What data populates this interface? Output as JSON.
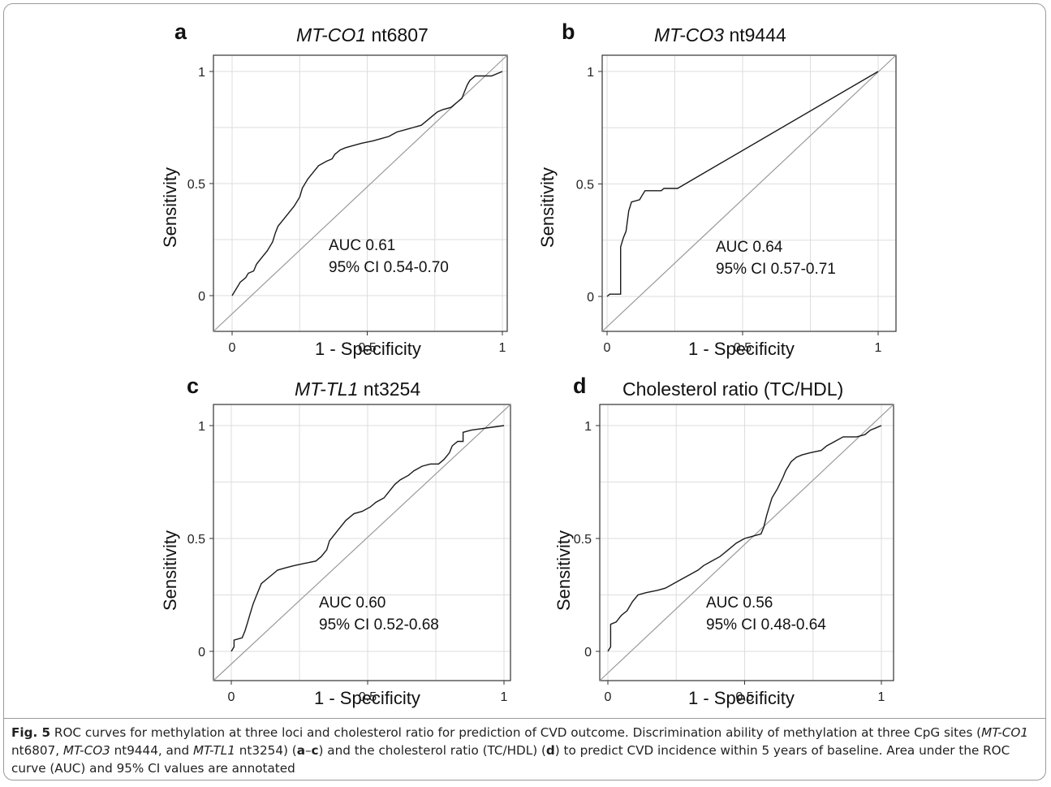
{
  "figure": {
    "caption_label": "Fig. 5",
    "caption_text": "ROC curves for methylation at three loci and cholesterol ratio for prediction of CVD outcome. Discrimination ability of methylation at three CpG sites (MT-CO1 nt6807, MT-CO3 nt9444, and MT-TL1 nt3254) (a–c) and the cholesterol ratio (TC/HDL) (d) to predict CVD incidence within 5 years of baseline. Area under the ROC curve (AUC) and 95% CI values are annotated"
  },
  "chart_data": [
    {
      "type": "line",
      "panel_letter": "a",
      "title_gene": "MT-CO1",
      "title_rest": " nt6807",
      "xlabel": "1 - Specificity",
      "ylabel": "Sensitivity",
      "xlim": [
        0,
        1
      ],
      "ylim": [
        0,
        1
      ],
      "x_ticks": [
        "0",
        "0.5",
        "1"
      ],
      "y_ticks": [
        "0",
        "0.5",
        "1"
      ],
      "grid": true,
      "annotation_auc": "AUC 0.61",
      "annotation_ci": "95% CI 0.54-0.70",
      "roc": [
        [
          0,
          0
        ],
        [
          0.01,
          0.02
        ],
        [
          0.02,
          0.04
        ],
        [
          0.03,
          0.06
        ],
        [
          0.05,
          0.08
        ],
        [
          0.06,
          0.1
        ],
        [
          0.08,
          0.11
        ],
        [
          0.09,
          0.14
        ],
        [
          0.11,
          0.17
        ],
        [
          0.13,
          0.2
        ],
        [
          0.15,
          0.24
        ],
        [
          0.16,
          0.28
        ],
        [
          0.17,
          0.31
        ],
        [
          0.19,
          0.34
        ],
        [
          0.21,
          0.37
        ],
        [
          0.23,
          0.4
        ],
        [
          0.25,
          0.44
        ],
        [
          0.26,
          0.48
        ],
        [
          0.28,
          0.52
        ],
        [
          0.3,
          0.55
        ],
        [
          0.32,
          0.58
        ],
        [
          0.35,
          0.6
        ],
        [
          0.37,
          0.61
        ],
        [
          0.38,
          0.63
        ],
        [
          0.4,
          0.65
        ],
        [
          0.42,
          0.66
        ],
        [
          0.45,
          0.67
        ],
        [
          0.48,
          0.68
        ],
        [
          0.52,
          0.69
        ],
        [
          0.55,
          0.7
        ],
        [
          0.58,
          0.71
        ],
        [
          0.61,
          0.73
        ],
        [
          0.64,
          0.74
        ],
        [
          0.67,
          0.75
        ],
        [
          0.7,
          0.76
        ],
        [
          0.72,
          0.78
        ],
        [
          0.74,
          0.8
        ],
        [
          0.76,
          0.82
        ],
        [
          0.78,
          0.83
        ],
        [
          0.81,
          0.84
        ],
        [
          0.83,
          0.86
        ],
        [
          0.85,
          0.88
        ],
        [
          0.86,
          0.91
        ],
        [
          0.87,
          0.94
        ],
        [
          0.88,
          0.96
        ],
        [
          0.9,
          0.98
        ],
        [
          0.93,
          0.98
        ],
        [
          0.96,
          0.98
        ],
        [
          1,
          1
        ]
      ]
    },
    {
      "type": "line",
      "panel_letter": "b",
      "title_gene": "MT-CO3",
      "title_rest": " nt9444",
      "xlabel": "1 - Specificity",
      "ylabel": "Sensitivity",
      "xlim": [
        0,
        1
      ],
      "ylim": [
        0,
        1
      ],
      "x_ticks": [
        "0",
        "0.5",
        "1"
      ],
      "y_ticks": [
        "0",
        "0.5",
        "1"
      ],
      "grid": true,
      "annotation_auc": "AUC 0.64",
      "annotation_ci": "95% CI 0.57-0.71",
      "roc": [
        [
          0,
          0
        ],
        [
          0.01,
          0.01
        ],
        [
          0.05,
          0.01
        ],
        [
          0.05,
          0.22
        ],
        [
          0.06,
          0.26
        ],
        [
          0.07,
          0.29
        ],
        [
          0.08,
          0.38
        ],
        [
          0.09,
          0.42
        ],
        [
          0.12,
          0.43
        ],
        [
          0.13,
          0.45
        ],
        [
          0.14,
          0.47
        ],
        [
          0.2,
          0.47
        ],
        [
          0.21,
          0.48
        ],
        [
          0.26,
          0.48
        ],
        [
          1,
          1
        ]
      ]
    },
    {
      "type": "line",
      "panel_letter": "c",
      "title_gene": "MT-TL1",
      "title_rest": " nt3254",
      "xlabel": "1 - Specificity",
      "ylabel": "Sensitivity",
      "xlim": [
        0,
        1
      ],
      "ylim": [
        0,
        1
      ],
      "x_ticks": [
        "0",
        "0.5",
        "1"
      ],
      "y_ticks": [
        "0",
        "0.5",
        "1"
      ],
      "grid": true,
      "annotation_auc": "AUC 0.60",
      "annotation_ci": "95% CI 0.52-0.68",
      "roc": [
        [
          0,
          0
        ],
        [
          0.01,
          0.02
        ],
        [
          0.01,
          0.05
        ],
        [
          0.04,
          0.06
        ],
        [
          0.05,
          0.09
        ],
        [
          0.06,
          0.13
        ],
        [
          0.07,
          0.17
        ],
        [
          0.08,
          0.21
        ],
        [
          0.09,
          0.24
        ],
        [
          0.1,
          0.27
        ],
        [
          0.11,
          0.3
        ],
        [
          0.13,
          0.32
        ],
        [
          0.15,
          0.34
        ],
        [
          0.17,
          0.36
        ],
        [
          0.2,
          0.37
        ],
        [
          0.23,
          0.38
        ],
        [
          0.27,
          0.39
        ],
        [
          0.31,
          0.4
        ],
        [
          0.33,
          0.42
        ],
        [
          0.35,
          0.45
        ],
        [
          0.36,
          0.49
        ],
        [
          0.38,
          0.52
        ],
        [
          0.4,
          0.55
        ],
        [
          0.42,
          0.58
        ],
        [
          0.45,
          0.61
        ],
        [
          0.48,
          0.62
        ],
        [
          0.51,
          0.64
        ],
        [
          0.53,
          0.66
        ],
        [
          0.56,
          0.68
        ],
        [
          0.58,
          0.71
        ],
        [
          0.6,
          0.74
        ],
        [
          0.62,
          0.76
        ],
        [
          0.65,
          0.78
        ],
        [
          0.67,
          0.8
        ],
        [
          0.7,
          0.82
        ],
        [
          0.73,
          0.83
        ],
        [
          0.76,
          0.83
        ],
        [
          0.78,
          0.85
        ],
        [
          0.8,
          0.88
        ],
        [
          0.81,
          0.91
        ],
        [
          0.83,
          0.93
        ],
        [
          0.85,
          0.93
        ],
        [
          0.85,
          0.97
        ],
        [
          0.88,
          0.98
        ],
        [
          1,
          1
        ]
      ]
    },
    {
      "type": "line",
      "panel_letter": "d",
      "title_gene": "",
      "title_rest": "Cholesterol ratio (TC/HDL)",
      "xlabel": "1 - Specificity",
      "ylabel": "Sensitivity",
      "xlim": [
        0,
        1
      ],
      "ylim": [
        0,
        1
      ],
      "x_ticks": [
        "0",
        "0.5",
        "1"
      ],
      "y_ticks": [
        "0",
        "0.5",
        "1"
      ],
      "grid": true,
      "annotation_auc": "AUC 0.56",
      "annotation_ci": "95% CI 0.48-0.64",
      "roc": [
        [
          0,
          0
        ],
        [
          0.01,
          0.02
        ],
        [
          0.01,
          0.12
        ],
        [
          0.03,
          0.13
        ],
        [
          0.05,
          0.16
        ],
        [
          0.07,
          0.18
        ],
        [
          0.09,
          0.22
        ],
        [
          0.11,
          0.25
        ],
        [
          0.14,
          0.26
        ],
        [
          0.18,
          0.27
        ],
        [
          0.21,
          0.28
        ],
        [
          0.24,
          0.3
        ],
        [
          0.27,
          0.32
        ],
        [
          0.3,
          0.34
        ],
        [
          0.33,
          0.36
        ],
        [
          0.35,
          0.38
        ],
        [
          0.38,
          0.4
        ],
        [
          0.41,
          0.42
        ],
        [
          0.44,
          0.45
        ],
        [
          0.47,
          0.48
        ],
        [
          0.5,
          0.5
        ],
        [
          0.53,
          0.51
        ],
        [
          0.56,
          0.52
        ],
        [
          0.57,
          0.55
        ],
        [
          0.58,
          0.6
        ],
        [
          0.59,
          0.64
        ],
        [
          0.6,
          0.68
        ],
        [
          0.62,
          0.72
        ],
        [
          0.64,
          0.77
        ],
        [
          0.65,
          0.8
        ],
        [
          0.67,
          0.84
        ],
        [
          0.69,
          0.86
        ],
        [
          0.71,
          0.87
        ],
        [
          0.74,
          0.88
        ],
        [
          0.78,
          0.89
        ],
        [
          0.8,
          0.91
        ],
        [
          0.83,
          0.93
        ],
        [
          0.86,
          0.95
        ],
        [
          0.91,
          0.95
        ],
        [
          0.94,
          0.96
        ],
        [
          0.96,
          0.98
        ],
        [
          0.98,
          0.99
        ],
        [
          1,
          1
        ]
      ]
    }
  ]
}
